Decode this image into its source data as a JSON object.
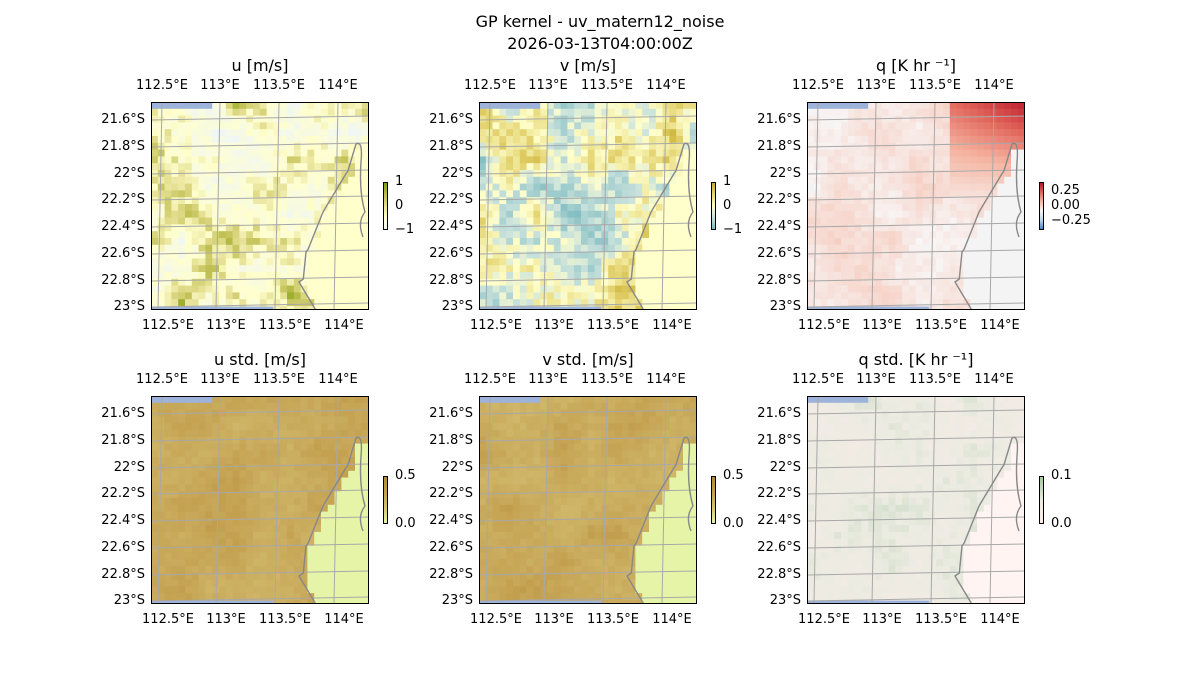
{
  "title": "GP kernel - uv_matern12_noise",
  "subtitle": "2026-03-13T04:00:00Z",
  "lon_ticks": [
    "112.5°E",
    "113°E",
    "113.5°E",
    "114°E"
  ],
  "lat_ticks": [
    "21.6°S",
    "21.8°S",
    "22°S",
    "22.2°S",
    "22.4°S",
    "22.6°S",
    "22.8°S",
    "23°S"
  ],
  "colors": {
    "ocean": "#9db3da",
    "grid": "#a8a8a8",
    "coast": "#888888"
  },
  "chart_data": [
    {
      "type": "heatmap",
      "title": "u [m/s]",
      "colormap": "yellow-olive",
      "land_color": "#ffffcc",
      "colorbar": {
        "ticks": [
          "1",
          "0",
          "−1"
        ],
        "range": [
          -1,
          1
        ]
      }
    },
    {
      "type": "heatmap",
      "title": "v [m/s]",
      "colormap": "yellow-teal",
      "land_color": "#ffffcc",
      "colorbar": {
        "ticks": [
          "1",
          "0",
          "−1"
        ],
        "range": [
          -1,
          1
        ]
      }
    },
    {
      "type": "heatmap",
      "title": "q [K hr ⁻¹]",
      "colormap": "red-blue",
      "land_color": "#f4f4f4",
      "colorbar": {
        "ticks": [
          "0.25",
          "0.00",
          "−0.25"
        ],
        "range": [
          -0.35,
          0.35
        ]
      }
    },
    {
      "type": "heatmap",
      "title": "u std. [m/s]",
      "colormap": "olive-brown",
      "land_color": "#e6f4a8",
      "colorbar": {
        "ticks": [
          "0.5",
          "0.0"
        ],
        "range": [
          0,
          0.5
        ]
      }
    },
    {
      "type": "heatmap",
      "title": "v std. [m/s]",
      "colormap": "olive-brown",
      "land_color": "#e6f4a8",
      "colorbar": {
        "ticks": [
          "0.5",
          "0.0"
        ],
        "range": [
          0,
          0.5
        ]
      }
    },
    {
      "type": "heatmap",
      "title": "q std. [K hr ⁻¹]",
      "colormap": "pink-green",
      "land_color": "#fff4f2",
      "colorbar": {
        "ticks": [
          "0.1",
          "0.0"
        ],
        "range": [
          0,
          0.1
        ]
      }
    }
  ]
}
